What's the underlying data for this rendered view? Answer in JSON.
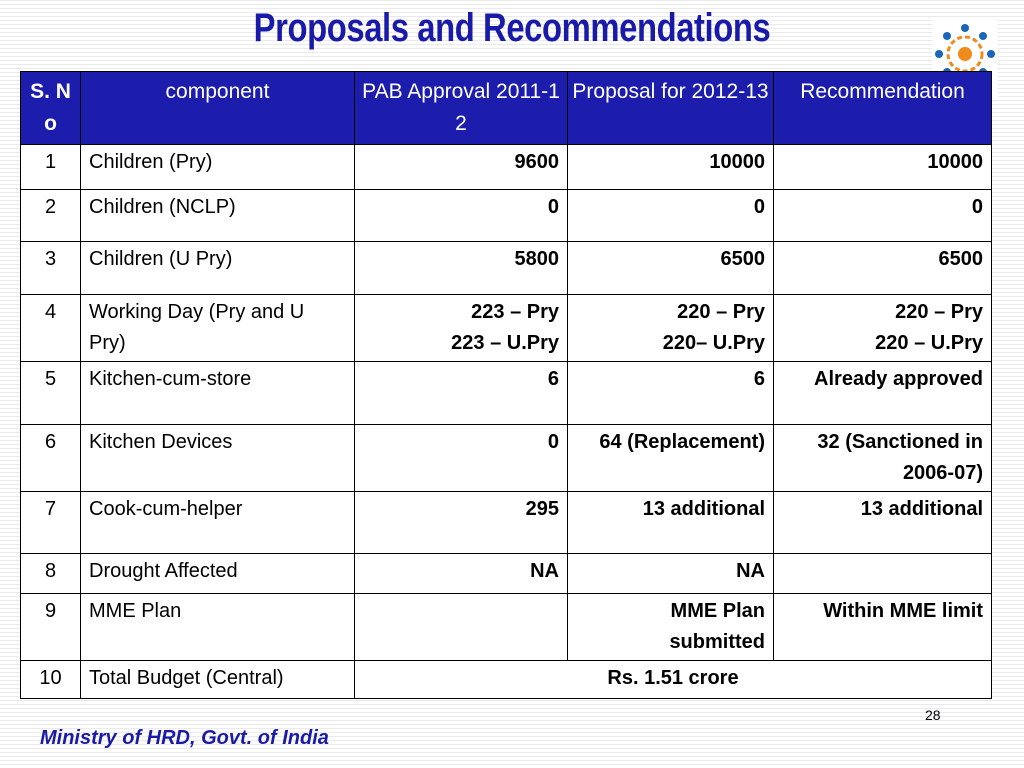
{
  "slide": {
    "title": "Proposals and Recommendations",
    "page_number": "28",
    "footer": "Ministry of HRD, Govt. of India"
  },
  "table": {
    "headers": [
      "S. No",
      "component",
      "PAB Approval 2011-12",
      "Proposal for 2012-13",
      "Recommendation"
    ],
    "rows": [
      {
        "sno": "1",
        "component": "Children (Pry)",
        "pab": "9600",
        "proposal": "10000",
        "recommendation": "10000"
      },
      {
        "sno": "2",
        "component": "Children (NCLP)",
        "pab": "0",
        "proposal": "0",
        "recommendation": "0"
      },
      {
        "sno": "3",
        "component": "Children (U Pry)",
        "pab": "5800",
        "proposal": "6500",
        "recommendation": "6500"
      },
      {
        "sno": "4",
        "component": "Working Day (Pry and U Pry)",
        "pab": "223 – Pry\n223 – U.Pry",
        "proposal": "220 – Pry\n220– U.Pry",
        "recommendation": "220 – Pry\n220 – U.Pry"
      },
      {
        "sno": "5",
        "component": "Kitchen-cum-store",
        "pab": "6",
        "proposal": "6",
        "recommendation": "Already approved"
      },
      {
        "sno": "6",
        "component": "Kitchen Devices",
        "pab": "0",
        "proposal": "64 (Replacement)",
        "recommendation": "32 (Sanctioned in 2006-07)"
      },
      {
        "sno": "7",
        "component": "Cook-cum-helper",
        "pab": "295",
        "proposal": "13 additional",
        "recommendation": "13 additional"
      },
      {
        "sno": "8",
        "component": "Drought Affected",
        "pab": "NA",
        "proposal": "NA",
        "recommendation": ""
      },
      {
        "sno": "9",
        "component": "MME Plan",
        "pab": "",
        "proposal": "MME Plan submitted",
        "recommendation": "Within MME limit"
      }
    ],
    "total_row": {
      "sno": "10",
      "component": "Total Budget (Central)",
      "value": "Rs. 1.51 crore"
    }
  }
}
